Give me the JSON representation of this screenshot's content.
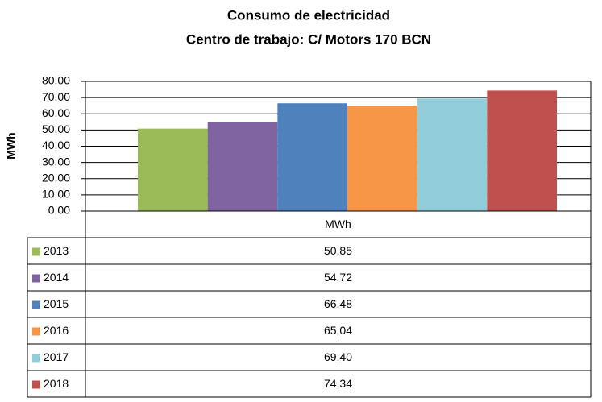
{
  "chart_data": {
    "type": "bar",
    "title": "Consumo de electricidad",
    "subtitle": "Centro de trabajo: C/ Motors 170 BCN",
    "y_label": "MWh",
    "categories": [
      "MWh"
    ],
    "series": [
      {
        "name": "2013",
        "color": "#9bbb59",
        "values": [
          50.85
        ],
        "value_labels": [
          "50,85"
        ]
      },
      {
        "name": "2014",
        "color": "#8064a2",
        "values": [
          54.72
        ],
        "value_labels": [
          "54,72"
        ]
      },
      {
        "name": "2015",
        "color": "#4f81bd",
        "values": [
          66.48
        ],
        "value_labels": [
          "66,48"
        ]
      },
      {
        "name": "2016",
        "color": "#f79646",
        "values": [
          65.04
        ],
        "value_labels": [
          "65,04"
        ]
      },
      {
        "name": "2017",
        "color": "#92cddc",
        "values": [
          69.4
        ],
        "value_labels": [
          "69,40"
        ]
      },
      {
        "name": "2018",
        "color": "#c0504d",
        "values": [
          74.34
        ],
        "value_labels": [
          "74,34"
        ]
      }
    ],
    "ylim": [
      0,
      80
    ],
    "yticks": [
      {
        "value": 0,
        "label": "0,00"
      },
      {
        "value": 10,
        "label": "10,00"
      },
      {
        "value": 20,
        "label": "20,00"
      },
      {
        "value": 30,
        "label": "30,00"
      },
      {
        "value": 40,
        "label": "40,00"
      },
      {
        "value": 50,
        "label": "50,00"
      },
      {
        "value": 60,
        "label": "60,00"
      },
      {
        "value": 70,
        "label": "70,00"
      },
      {
        "value": 80,
        "label": "80,00"
      }
    ],
    "grid": true
  }
}
